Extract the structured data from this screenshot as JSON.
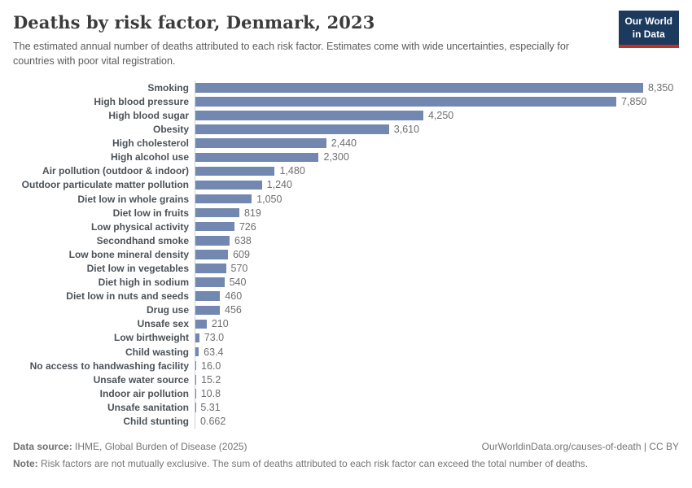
{
  "header": {
    "title": "Deaths by risk factor, Denmark, 2023",
    "subtitle": "The estimated annual number of deaths attributed to each risk factor. Estimates come with wide uncertainties, especially for countries with poor vital registration.",
    "logo": {
      "line1": "Our World",
      "line2": "in Data"
    }
  },
  "chart_data": {
    "type": "bar",
    "orientation": "horizontal",
    "title": "Deaths by risk factor, Denmark, 2023",
    "xlabel": "",
    "ylabel": "",
    "xlim": [
      0,
      8350
    ],
    "grid": false,
    "legend": false,
    "bar_color": "#7288b0",
    "axis_line_color": "#cdd1d6",
    "categories": [
      "Smoking",
      "High blood pressure",
      "High blood sugar",
      "Obesity",
      "High cholesterol",
      "High alcohol use",
      "Air pollution (outdoor & indoor)",
      "Outdoor particulate matter pollution",
      "Diet low in whole grains",
      "Diet low in fruits",
      "Low physical activity",
      "Secondhand smoke",
      "Low bone mineral density",
      "Diet low in vegetables",
      "Diet high in sodium",
      "Diet low in nuts and seeds",
      "Drug use",
      "Unsafe sex",
      "Low birthweight",
      "Child wasting",
      "No access to handwashing facility",
      "Unsafe water source",
      "Indoor air pollution",
      "Unsafe sanitation",
      "Child stunting"
    ],
    "values": [
      8350,
      7850,
      4250,
      3610,
      2440,
      2300,
      1480,
      1240,
      1050,
      819,
      726,
      638,
      609,
      570,
      540,
      460,
      456,
      210,
      73.0,
      63.4,
      16.0,
      15.2,
      10.8,
      5.31,
      0.662
    ],
    "value_labels": [
      "8,350",
      "7,850",
      "4,250",
      "3,610",
      "2,440",
      "2,300",
      "1,480",
      "1,240",
      "1,050",
      "819",
      "726",
      "638",
      "609",
      "570",
      "540",
      "460",
      "456",
      "210",
      "73.0",
      "63.4",
      "16.0",
      "15.2",
      "10.8",
      "5.31",
      "0.662"
    ]
  },
  "footer": {
    "source_label": "Data source:",
    "source_text": " IHME, Global Burden of Disease (2025)",
    "link": "OurWorldinData.org/causes-of-death",
    "license": " | CC BY",
    "note_label": "Note:",
    "note_text": " Risk factors are not mutually exclusive. The sum of deaths attributed to each risk factor can exceed the total number of deaths."
  }
}
